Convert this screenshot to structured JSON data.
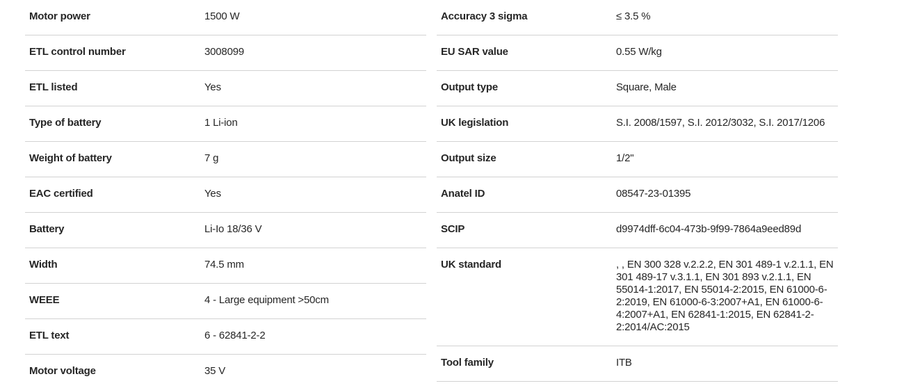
{
  "colors": {
    "text": "#262626",
    "divider": "#d2d2d2",
    "background": "#ffffff"
  },
  "spec_table": {
    "left_column": [
      {
        "label": "Motor power",
        "value": "1500 W"
      },
      {
        "label": "ETL control number",
        "value": "3008099"
      },
      {
        "label": "ETL listed",
        "value": "Yes"
      },
      {
        "label": "Type of battery",
        "value": "1 Li-ion"
      },
      {
        "label": "Weight of battery",
        "value": "7 g"
      },
      {
        "label": "EAC certified",
        "value": "Yes"
      },
      {
        "label": "Battery",
        "value": "Li-Io 18/36 V"
      },
      {
        "label": "Width",
        "value": "74.5 mm"
      },
      {
        "label": "WEEE",
        "value": "4 - Large equipment >50cm"
      },
      {
        "label": "ETL text",
        "value": "6 - 62841-2-2"
      },
      {
        "label": "Motor voltage",
        "value": "35 V"
      }
    ],
    "right_column": [
      {
        "label": "Accuracy 3 sigma",
        "value": "≤ 3.5 %"
      },
      {
        "label": "EU SAR value",
        "value": "0.55 W/kg"
      },
      {
        "label": "Output type",
        "value": "Square, Male"
      },
      {
        "label": "UK legislation",
        "value": "S.I. 2008/1597, S.I. 2012/3032, S.I. 2017/1206"
      },
      {
        "label": "Output size",
        "value": "1/2\""
      },
      {
        "label": "Anatel ID",
        "value": "08547-23-01395"
      },
      {
        "label": "SCIP",
        "value": "d9974dff-6c04-473b-9f99-7864a9eed89d"
      },
      {
        "label": "UK standard",
        "value": ", , EN 300 328 v.2.2.2, EN 301 489-1 v.2.1.1, EN 301 489-17 v.3.1.1, EN 301 893 v.2.1.1, EN 55014-1:2017, EN 55014-2:2015, EN 61000-6-2:2019, EN 61000-6-3:2007+A1, EN 61000-6-4:2007+A1, EN 62841-1:2015, EN 62841-2-2:2014/AC:2015"
      },
      {
        "label": "Tool family",
        "value": "ITB"
      }
    ]
  }
}
